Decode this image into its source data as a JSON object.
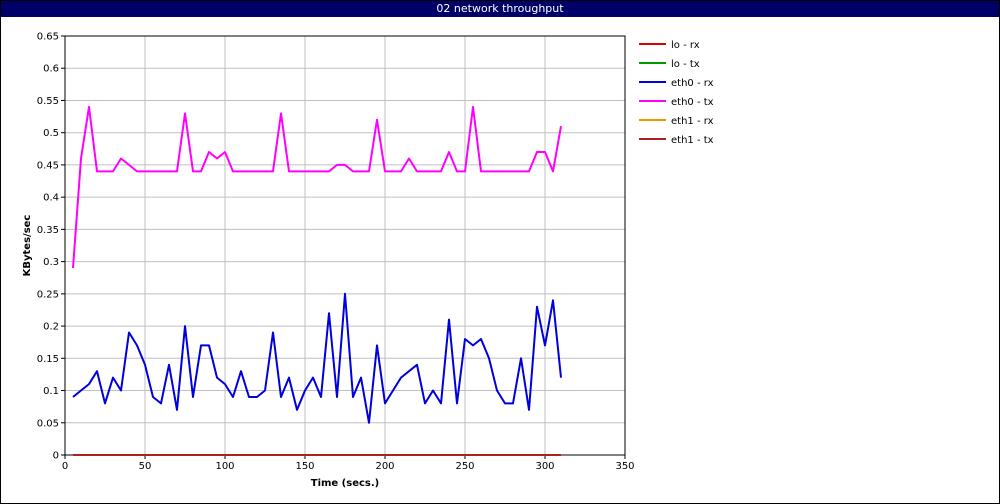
{
  "window_title": "02 network throughput",
  "chart_data": {
    "type": "line",
    "title": "02 network throughput",
    "xlabel": "Time (secs.)",
    "ylabel": "KBytes/sec",
    "xlim": [
      0,
      350
    ],
    "ylim": [
      0,
      0.65
    ],
    "xticks": [
      "0",
      "50",
      "100",
      "150",
      "200",
      "250",
      "300",
      "350"
    ],
    "yticks": [
      "0",
      "0.05",
      "0.1",
      "0.15",
      "0.2",
      "0.25",
      "0.3",
      "0.35",
      "0.4",
      "0.45",
      "0.5",
      "0.55",
      "0.6",
      "0.65"
    ],
    "grid": true,
    "legend_position": "right",
    "x": [
      5,
      10,
      15,
      20,
      25,
      30,
      35,
      40,
      45,
      50,
      55,
      60,
      65,
      70,
      75,
      80,
      85,
      90,
      95,
      100,
      105,
      110,
      115,
      120,
      125,
      130,
      135,
      140,
      145,
      150,
      155,
      160,
      165,
      170,
      175,
      180,
      185,
      190,
      195,
      200,
      205,
      210,
      215,
      220,
      225,
      230,
      235,
      240,
      245,
      250,
      255,
      260,
      265,
      270,
      275,
      280,
      285,
      290,
      295,
      300,
      305,
      310
    ],
    "series": [
      {
        "name": "lo - rx",
        "color": "#dd0000",
        "values": [
          0,
          0,
          0,
          0,
          0,
          0,
          0,
          0,
          0,
          0,
          0,
          0,
          0,
          0,
          0,
          0,
          0,
          0,
          0,
          0,
          0,
          0,
          0,
          0,
          0,
          0,
          0,
          0,
          0,
          0,
          0,
          0,
          0,
          0,
          0,
          0,
          0,
          0,
          0,
          0,
          0,
          0,
          0,
          0,
          0,
          0,
          0,
          0,
          0,
          0,
          0,
          0,
          0,
          0,
          0,
          0,
          0,
          0,
          0,
          0,
          0,
          0
        ]
      },
      {
        "name": "lo - tx",
        "color": "#009900",
        "values": [
          0,
          0,
          0,
          0,
          0,
          0,
          0,
          0,
          0,
          0,
          0,
          0,
          0,
          0,
          0,
          0,
          0,
          0,
          0,
          0,
          0,
          0,
          0,
          0,
          0,
          0,
          0,
          0,
          0,
          0,
          0,
          0,
          0,
          0,
          0,
          0,
          0,
          0,
          0,
          0,
          0,
          0,
          0,
          0,
          0,
          0,
          0,
          0,
          0,
          0,
          0,
          0,
          0,
          0,
          0,
          0,
          0,
          0,
          0,
          0,
          0,
          0
        ]
      },
      {
        "name": "eth0 - rx",
        "color": "#0000dd",
        "values": [
          0.09,
          0.1,
          0.11,
          0.13,
          0.08,
          0.12,
          0.1,
          0.19,
          0.17,
          0.14,
          0.09,
          0.08,
          0.14,
          0.07,
          0.2,
          0.09,
          0.17,
          0.17,
          0.12,
          0.11,
          0.09,
          0.13,
          0.09,
          0.09,
          0.1,
          0.19,
          0.09,
          0.12,
          0.07,
          0.1,
          0.12,
          0.09,
          0.22,
          0.09,
          0.25,
          0.09,
          0.12,
          0.05,
          0.17,
          0.08,
          0.1,
          0.12,
          0.13,
          0.14,
          0.08,
          0.1,
          0.08,
          0.21,
          0.08,
          0.18,
          0.17,
          0.18,
          0.15,
          0.1,
          0.08,
          0.08,
          0.15,
          0.07,
          0.23,
          0.17,
          0.24,
          0.12
        ]
      },
      {
        "name": "eth0 - tx",
        "color": "#ff00ff",
        "values": [
          0.29,
          0.46,
          0.54,
          0.44,
          0.44,
          0.44,
          0.46,
          0.45,
          0.44,
          0.44,
          0.44,
          0.44,
          0.44,
          0.44,
          0.53,
          0.44,
          0.44,
          0.47,
          0.46,
          0.47,
          0.44,
          0.44,
          0.44,
          0.44,
          0.44,
          0.44,
          0.53,
          0.44,
          0.44,
          0.44,
          0.44,
          0.44,
          0.44,
          0.45,
          0.45,
          0.44,
          0.44,
          0.44,
          0.52,
          0.44,
          0.44,
          0.44,
          0.46,
          0.44,
          0.44,
          0.44,
          0.44,
          0.47,
          0.44,
          0.44,
          0.54,
          0.44,
          0.44,
          0.44,
          0.44,
          0.44,
          0.44,
          0.44,
          0.47,
          0.47,
          0.44,
          0.51
        ]
      },
      {
        "name": "eth1 - rx",
        "color": "#ee9900",
        "values": [
          0,
          0,
          0,
          0,
          0,
          0,
          0,
          0,
          0,
          0,
          0,
          0,
          0,
          0,
          0,
          0,
          0,
          0,
          0,
          0,
          0,
          0,
          0,
          0,
          0,
          0,
          0,
          0,
          0,
          0,
          0,
          0,
          0,
          0,
          0,
          0,
          0,
          0,
          0,
          0,
          0,
          0,
          0,
          0,
          0,
          0,
          0,
          0,
          0,
          0,
          0,
          0,
          0,
          0,
          0,
          0,
          0,
          0,
          0,
          0,
          0,
          0
        ]
      },
      {
        "name": "eth1 - tx",
        "color": "#aa2222",
        "values": [
          0,
          0,
          0,
          0,
          0,
          0,
          0,
          0,
          0,
          0,
          0,
          0,
          0,
          0,
          0,
          0,
          0,
          0,
          0,
          0,
          0,
          0,
          0,
          0,
          0,
          0,
          0,
          0,
          0,
          0,
          0,
          0,
          0,
          0,
          0,
          0,
          0,
          0,
          0,
          0,
          0,
          0,
          0,
          0,
          0,
          0,
          0,
          0,
          0,
          0,
          0,
          0,
          0,
          0,
          0,
          0,
          0,
          0,
          0,
          0,
          0,
          0
        ]
      }
    ]
  }
}
